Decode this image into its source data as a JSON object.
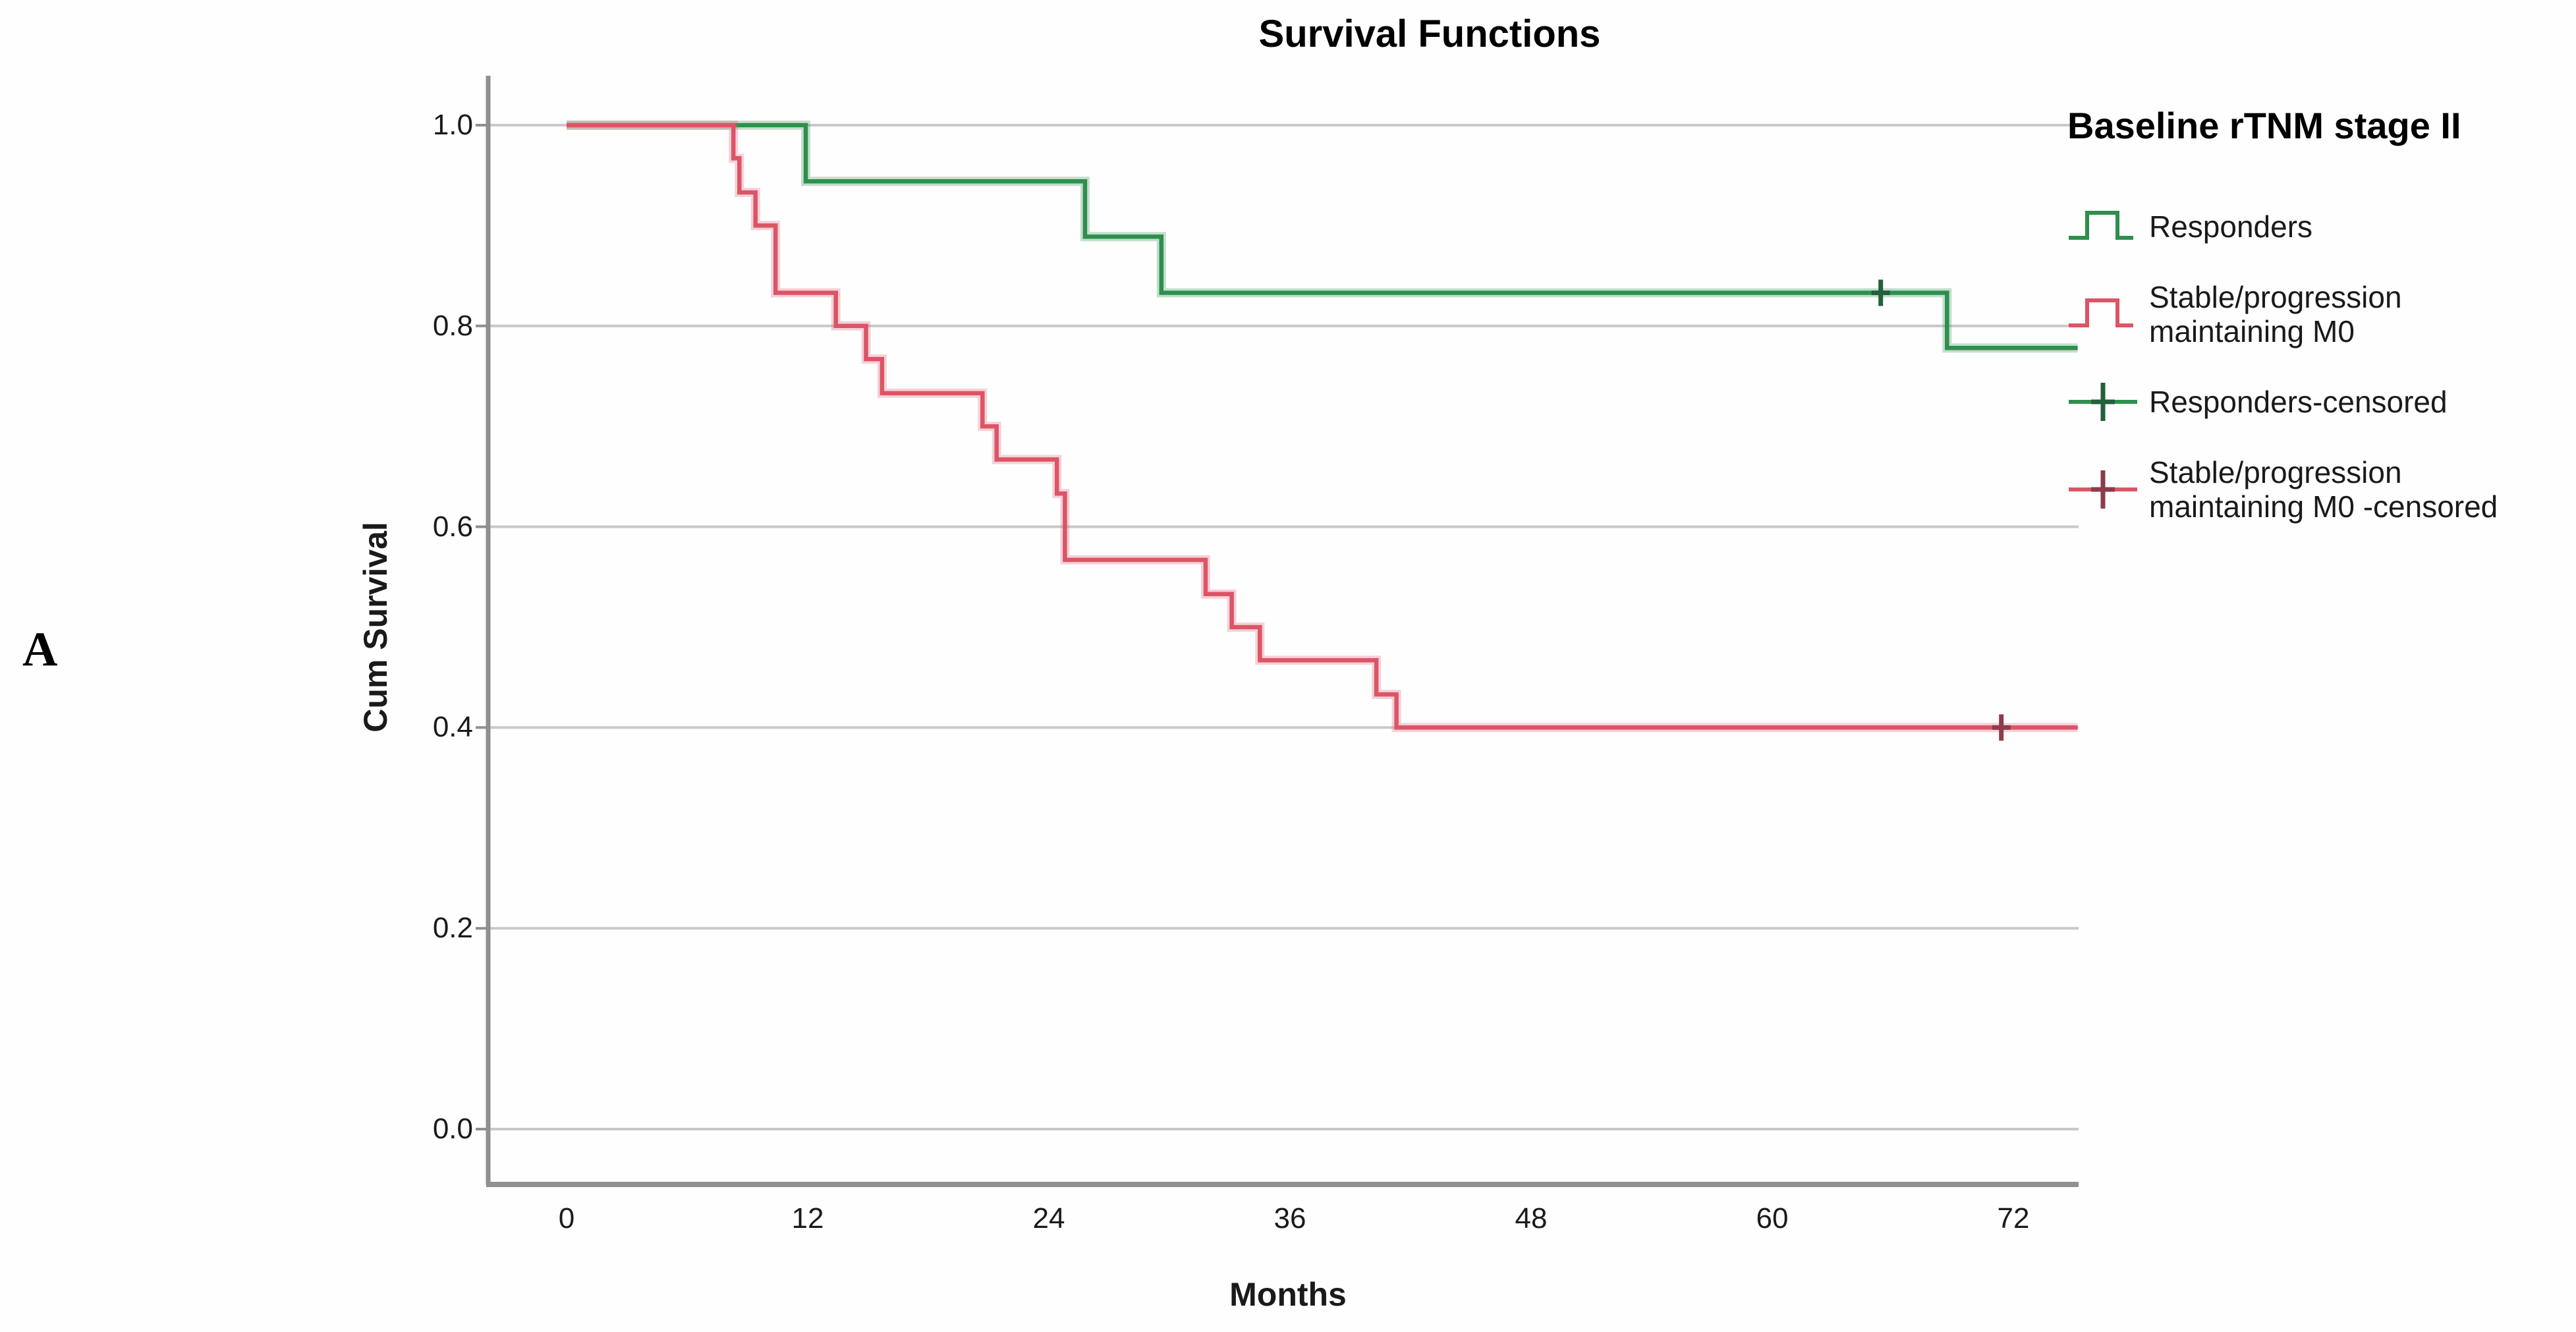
{
  "panel_label": "A",
  "title": "Survival Functions",
  "x_axis": {
    "label": "Months",
    "tick_labels": [
      "0",
      "12",
      "24",
      "36",
      "48",
      "60",
      "72"
    ],
    "tick_values": [
      0,
      12,
      24,
      36,
      48,
      60,
      72
    ]
  },
  "y_axis": {
    "label": "Cum Survival",
    "tick_labels": [
      "1.0",
      "0.8",
      "0.6",
      "0.4",
      "0.2",
      "0.0"
    ],
    "tick_values": [
      1.0,
      0.8,
      0.6,
      0.4,
      0.2,
      0.0
    ]
  },
  "legend": {
    "title": "Baseline rTNM stage II",
    "items": [
      {
        "label": "Responders",
        "glyph": "step",
        "color_key": "green"
      },
      {
        "label": "Stable/progression\nmaintaining M0",
        "glyph": "step",
        "color_key": "red"
      },
      {
        "label": "Responders-censored",
        "glyph": "censor",
        "color_key": "green"
      },
      {
        "label": "Stable/progression\nmaintaining M0 -censored",
        "glyph": "censor",
        "color_key": "red"
      }
    ]
  },
  "colors": {
    "green": "#2E8F4C",
    "green_halo": "rgba(62,150,90,0.30)",
    "green_dark": "#23603C",
    "red": "#DB5566",
    "red_halo": "rgba(224,95,120,0.28)",
    "red_dark": "#8E3C4B",
    "grid": "#C9C9C9",
    "axis": "#8F8F8F",
    "text": "#1a1a1a"
  },
  "chart_data": {
    "type": "line",
    "subtype": "kaplan-meier-step-function",
    "title": "Survival Functions",
    "xlabel": "Months",
    "ylabel": "Cum Survival",
    "xlim": [
      -3.9,
      75.2
    ],
    "ylim": [
      -0.055,
      1.05
    ],
    "x_ticks": [
      0,
      12,
      24,
      36,
      48,
      60,
      72
    ],
    "y_ticks": [
      1.0,
      0.8,
      0.6,
      0.4,
      0.2,
      0.0
    ],
    "grid": "horizontal-only",
    "legend_position": "right",
    "legend_title": "Baseline rTNM stage II",
    "series": [
      {
        "name": "Responders",
        "color_key": "green",
        "points": [
          [
            0,
            1.0
          ],
          [
            11.9,
            1.0
          ],
          [
            11.9,
            0.944
          ],
          [
            25.8,
            0.944
          ],
          [
            25.8,
            0.889
          ],
          [
            29.6,
            0.889
          ],
          [
            29.6,
            0.833
          ],
          [
            68.7,
            0.833
          ],
          [
            68.7,
            0.778
          ],
          [
            75.2,
            0.778
          ]
        ],
        "censored": [
          [
            65.4,
            0.833
          ]
        ]
      },
      {
        "name": "Stable/progression maintaining M0",
        "color_key": "red",
        "points": [
          [
            0,
            1.0
          ],
          [
            8.3,
            1.0
          ],
          [
            8.3,
            0.967
          ],
          [
            8.6,
            0.967
          ],
          [
            8.6,
            0.933
          ],
          [
            9.4,
            0.933
          ],
          [
            9.4,
            0.9
          ],
          [
            10.4,
            0.9
          ],
          [
            10.4,
            0.833
          ],
          [
            13.4,
            0.833
          ],
          [
            13.4,
            0.8
          ],
          [
            14.9,
            0.8
          ],
          [
            14.9,
            0.767
          ],
          [
            15.7,
            0.767
          ],
          [
            15.7,
            0.733
          ],
          [
            20.7,
            0.733
          ],
          [
            20.7,
            0.7
          ],
          [
            21.4,
            0.7
          ],
          [
            21.4,
            0.667
          ],
          [
            24.4,
            0.667
          ],
          [
            24.4,
            0.633
          ],
          [
            24.8,
            0.633
          ],
          [
            24.8,
            0.567
          ],
          [
            31.8,
            0.567
          ],
          [
            31.8,
            0.533
          ],
          [
            33.1,
            0.533
          ],
          [
            33.1,
            0.5
          ],
          [
            34.5,
            0.5
          ],
          [
            34.5,
            0.467
          ],
          [
            40.3,
            0.467
          ],
          [
            40.3,
            0.433
          ],
          [
            41.3,
            0.433
          ],
          [
            41.3,
            0.4
          ],
          [
            75.2,
            0.4
          ]
        ],
        "censored": [
          [
            71.4,
            0.4
          ]
        ]
      }
    ]
  }
}
